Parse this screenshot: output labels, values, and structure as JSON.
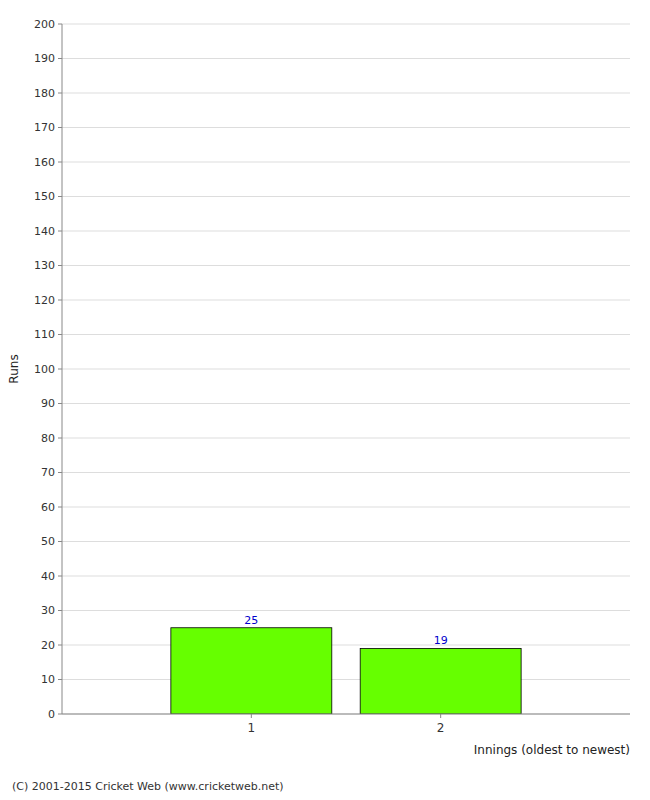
{
  "chart_data": {
    "type": "bar",
    "categories": [
      "1",
      "2"
    ],
    "values": [
      25,
      19
    ],
    "color": "#66ff00",
    "y_label": "Runs",
    "x_label": "Innings (oldest to newest)",
    "annotations": [
      "(C) 2001-2015 Cricket Web (www.cricketweb.net)"
    ],
    "ylim": [
      0,
      200
    ],
    "yticks": [
      0,
      10,
      20,
      30,
      40,
      50,
      60,
      70,
      80,
      90,
      100,
      110,
      120,
      130,
      140,
      150,
      160,
      170,
      180,
      190,
      200
    ],
    "grid": true,
    "data_labels": true
  }
}
